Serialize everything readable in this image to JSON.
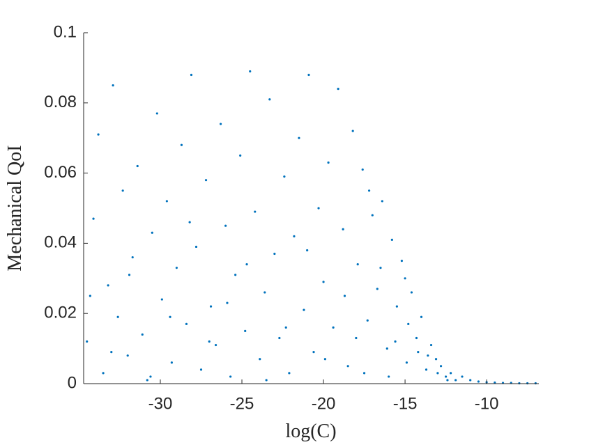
{
  "chart_data": {
    "type": "scatter",
    "xlabel": "log(C)",
    "ylabel": "Mechanical QoI",
    "color": "#0072bd",
    "xlim": [
      -34.7,
      -6.8
    ],
    "ylim": [
      0,
      0.1
    ],
    "xticks": [
      -30,
      -25,
      -20,
      -15,
      -10
    ],
    "yticks": [
      0,
      0.02,
      0.04,
      0.06,
      0.08,
      0.1
    ],
    "x": [
      -34.5,
      -34.1,
      -33.8,
      -33.5,
      -33.2,
      -32.9,
      -32.6,
      -32.3,
      -32.0,
      -31.7,
      -31.4,
      -31.1,
      -30.8,
      -30.5,
      -30.2,
      -29.9,
      -29.6,
      -29.3,
      -29.0,
      -28.7,
      -28.4,
      -28.1,
      -27.8,
      -27.5,
      -27.2,
      -26.9,
      -26.6,
      -26.3,
      -26.0,
      -25.7,
      -25.4,
      -25.1,
      -24.8,
      -24.5,
      -24.2,
      -23.9,
      -23.6,
      -23.3,
      -23.0,
      -22.7,
      -22.4,
      -22.1,
      -21.8,
      -21.5,
      -21.2,
      -20.9,
      -20.6,
      -20.3,
      -20.0,
      -19.7,
      -19.4,
      -19.1,
      -18.8,
      -18.5,
      -18.2,
      -17.9,
      -17.6,
      -17.3,
      -17.0,
      -16.7,
      -16.4,
      -16.1,
      -15.8,
      -15.5,
      -15.2,
      -14.9,
      -14.6,
      -14.3,
      -14.0,
      -13.7,
      -13.4,
      -13.1,
      -12.8,
      -12.5,
      -12.2,
      -11.9,
      -11.5,
      -11.0,
      -10.5,
      -10.0,
      -9.5,
      -9.0,
      -8.5,
      -8.0,
      -7.5,
      -7.0,
      -34.3,
      -33.0,
      -31.9,
      -30.6,
      -29.4,
      -28.2,
      -27.0,
      -25.9,
      -24.7,
      -23.5,
      -22.3,
      -21.0,
      -19.9,
      -18.7,
      -17.5,
      -16.5,
      -15.6,
      -14.8,
      -14.2,
      -13.6,
      -13.0,
      -12.4,
      -15.0,
      -16.0,
      -17.2,
      -18.0
    ],
    "y": [
      0.012,
      0.047,
      0.071,
      0.003,
      0.028,
      0.085,
      0.019,
      0.055,
      0.008,
      0.036,
      0.062,
      0.014,
      0.001,
      0.043,
      0.077,
      0.024,
      0.052,
      0.006,
      0.033,
      0.068,
      0.017,
      0.088,
      0.039,
      0.004,
      0.058,
      0.022,
      0.011,
      0.074,
      0.045,
      0.002,
      0.031,
      0.065,
      0.015,
      0.089,
      0.049,
      0.007,
      0.026,
      0.081,
      0.037,
      0.013,
      0.059,
      0.003,
      0.042,
      0.07,
      0.021,
      0.088,
      0.009,
      0.05,
      0.029,
      0.063,
      0.016,
      0.084,
      0.044,
      0.005,
      0.072,
      0.034,
      0.061,
      0.018,
      0.048,
      0.027,
      0.052,
      0.01,
      0.041,
      0.022,
      0.035,
      0.006,
      0.026,
      0.013,
      0.019,
      0.004,
      0.011,
      0.007,
      0.005,
      0.002,
      0.003,
      0.001,
      0.002,
      0.001,
      0.0006,
      0.0004,
      0.0003,
      0.0002,
      0.0002,
      0.0001,
      0.0001,
      0.0001,
      0.025,
      0.009,
      0.031,
      0.002,
      0.019,
      0.046,
      0.012,
      0.023,
      0.034,
      0.001,
      0.016,
      0.038,
      0.007,
      0.025,
      0.003,
      0.033,
      0.012,
      0.017,
      0.009,
      0.008,
      0.003,
      0.001,
      0.03,
      0.002,
      0.055,
      0.013
    ]
  }
}
